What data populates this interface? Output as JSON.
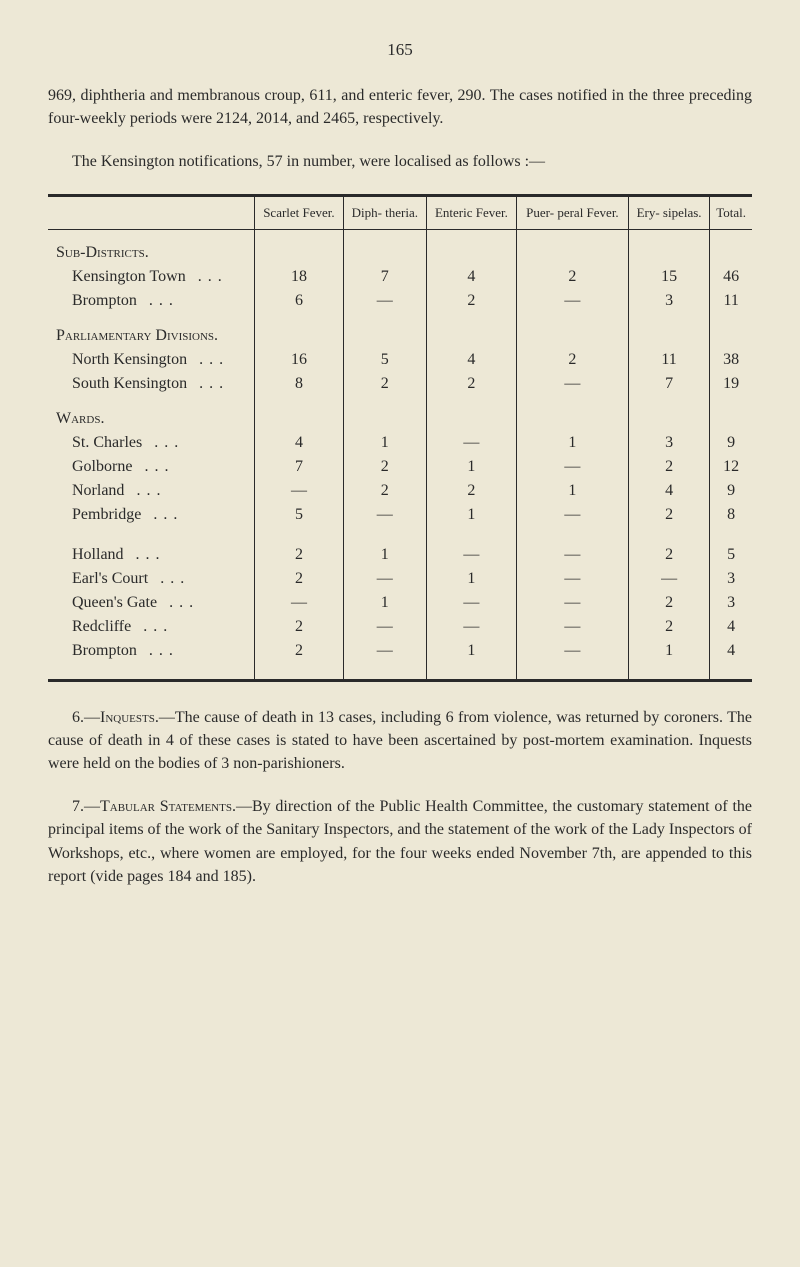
{
  "page_number": "165",
  "intro_text": "969, diphtheria and membranous croup, 611, and enteric fever, 290. The cases notified in the three preceding four-weekly periods were 2124, 2014, and 2465, respectively.",
  "lead_text": "The Kensington notifications, 57 in number, were localised as follows :—",
  "table": {
    "columns": [
      "",
      "Scarlet Fever.",
      "Diph- theria.",
      "Enteric Fever.",
      "Puer- peral Fever.",
      "Ery- sipelas.",
      "Total."
    ],
    "sections": [
      {
        "header": "Sub-Districts.",
        "rows": [
          {
            "label": "Kensington Town",
            "values": [
              "18",
              "7",
              "4",
              "2",
              "15",
              "46"
            ]
          },
          {
            "label": "Brompton",
            "values": [
              "6",
              "—",
              "2",
              "—",
              "3",
              "11"
            ]
          }
        ]
      },
      {
        "header": "Parliamentary Divisions.",
        "rows": [
          {
            "label": "North Kensington",
            "values": [
              "16",
              "5",
              "4",
              "2",
              "11",
              "38"
            ]
          },
          {
            "label": "South Kensington",
            "values": [
              "8",
              "2",
              "2",
              "—",
              "7",
              "19"
            ]
          }
        ]
      },
      {
        "header": "Wards.",
        "rows": [
          {
            "label": "St. Charles",
            "values": [
              "4",
              "1",
              "—",
              "1",
              "3",
              "9"
            ]
          },
          {
            "label": "Golborne",
            "values": [
              "7",
              "2",
              "1",
              "—",
              "2",
              "12"
            ]
          },
          {
            "label": "Norland",
            "values": [
              "—",
              "2",
              "2",
              "1",
              "4",
              "9"
            ]
          },
          {
            "label": "Pembridge",
            "values": [
              "5",
              "—",
              "1",
              "—",
              "2",
              "8"
            ]
          }
        ]
      },
      {
        "header": "",
        "rows": [
          {
            "label": "Holland",
            "values": [
              "2",
              "1",
              "—",
              "—",
              "2",
              "5"
            ]
          },
          {
            "label": "Earl's Court",
            "values": [
              "2",
              "—",
              "1",
              "—",
              "—",
              "3"
            ]
          },
          {
            "label": "Queen's Gate",
            "values": [
              "—",
              "1",
              "—",
              "—",
              "2",
              "3"
            ]
          },
          {
            "label": "Redcliffe",
            "values": [
              "2",
              "—",
              "—",
              "—",
              "2",
              "4"
            ]
          },
          {
            "label": "Brompton",
            "values": [
              "2",
              "—",
              "1",
              "—",
              "1",
              "4"
            ]
          }
        ]
      }
    ]
  },
  "para6": {
    "prefix": "6.—",
    "heading": "Inquests.",
    "body": "—The cause of death in 13 cases, including 6 from violence, was returned by coroners. The cause of death in 4 of these cases is stated to have been ascertained by post-mortem examination. Inquests were held on the bodies of 3 non-parishioners."
  },
  "para7": {
    "prefix": "7.—",
    "heading": "Tabular Statements.",
    "body": "—By direction of the Public Health Committee, the customary statement of the principal items of the work of the Sanitary Inspectors, and the statement of the work of the Lady Inspectors of Workshops, etc., where women are employed, for the four weeks ended November 7th, are appended to this report (vide pages 184 and 185)."
  }
}
